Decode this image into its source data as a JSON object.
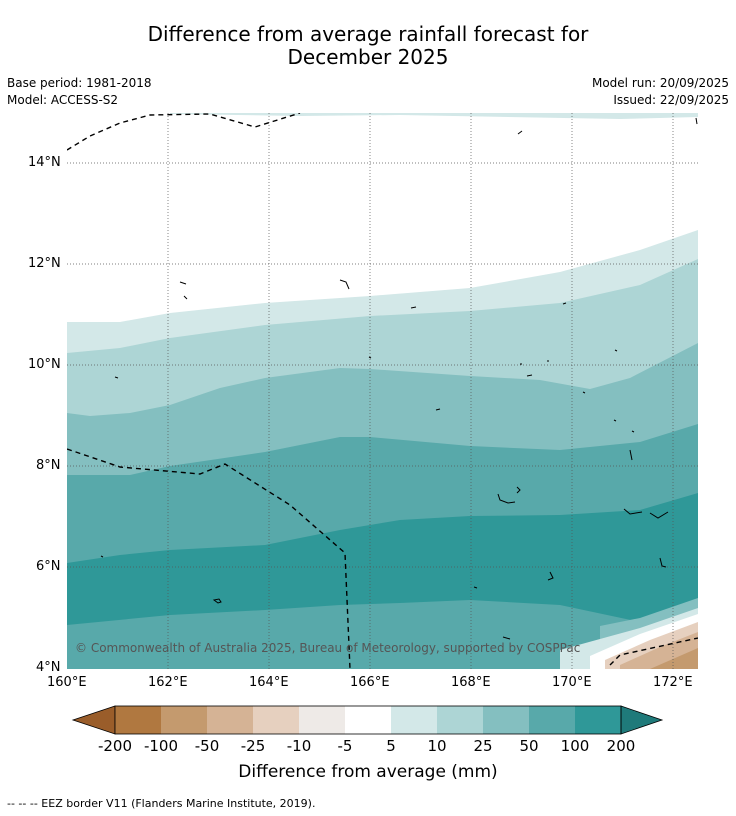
{
  "title_line1": "Difference from average rainfall forecast for",
  "title_line2": "December 2025",
  "base_period": "Base period: 1981-2018",
  "model": "Model: ACCESS-S2",
  "model_run": "Model run: 20/09/2025",
  "issued": "Issued: 22/09/2025",
  "copyright": "© Commonwealth of Australia 2025, Bureau of Meteorology, supported by COSPPac",
  "footnote": "--  --  -- EEZ border V11 (Flanders Marine Institute, 2019).",
  "map": {
    "lon_labels": [
      "160°E",
      "162°E",
      "164°E",
      "166°E",
      "168°E",
      "170°E",
      "172°E"
    ],
    "lat_labels": [
      "14°N",
      "12°N",
      "10°N",
      "8°N",
      "6°N",
      "4°N"
    ],
    "lon_values": [
      160,
      162,
      164,
      166,
      168,
      170,
      172
    ],
    "lat_values": [
      14,
      12,
      10,
      8,
      6,
      4
    ],
    "lon_range": [
      160,
      172.5
    ],
    "lat_range": [
      4,
      15
    ]
  },
  "colorbar": {
    "title": "Difference from average (mm)",
    "labels": [
      "-200",
      "-100",
      "-50",
      "-25",
      "-10",
      "-5",
      "5",
      "10",
      "25",
      "50",
      "100",
      "200"
    ],
    "colors": [
      "#9a5d2a",
      "#b07840",
      "#c49a6e",
      "#d5b395",
      "#e6d0bf",
      "#eeeae7",
      "#ffffff",
      "#d3e8e8",
      "#add5d5",
      "#84bfc0",
      "#58a9aa",
      "#2f9898",
      "#1f7a7a"
    ]
  }
}
